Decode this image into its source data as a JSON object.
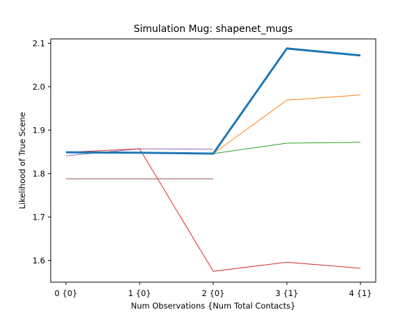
{
  "chart_data": {
    "type": "line",
    "title": "Simulation Mug: shapenet_mugs",
    "xlabel": "Num Observations {Num Total Contacts}",
    "ylabel": "Likelihood of True Scene",
    "categories": [
      "0 {0}",
      "1 {0}",
      "2 {0}",
      "3 {1}",
      "4 {1}"
    ],
    "ylim": [
      1.55,
      2.11
    ],
    "yticks": [
      "1.6",
      "1.7",
      "1.8",
      "1.9",
      "2.0",
      "2.1"
    ],
    "ytick_values": [
      1.6,
      1.7,
      1.8,
      1.9,
      2.0,
      2.1
    ],
    "grid": false,
    "series": [
      {
        "color": "#9467bd",
        "width": 1,
        "values": [
          1.841,
          1.857,
          1.856,
          null,
          null
        ]
      },
      {
        "color": "#8c564b",
        "width": 1,
        "values": [
          1.788,
          1.788,
          1.788,
          null,
          null
        ]
      },
      {
        "color": "#d62728",
        "width": 1,
        "values": [
          1.849,
          1.857,
          1.575,
          1.596,
          1.582
        ]
      },
      {
        "color": "#ff7f0e",
        "width": 1,
        "values": [
          1.848,
          1.848,
          1.846,
          1.969,
          1.981
        ]
      },
      {
        "color": "#2ca02c",
        "width": 1,
        "values": [
          1.848,
          1.848,
          1.846,
          1.87,
          1.872
        ]
      },
      {
        "color": "#1f77b4",
        "width": 3,
        "values": [
          1.849,
          1.848,
          1.846,
          2.088,
          2.072
        ]
      }
    ]
  }
}
